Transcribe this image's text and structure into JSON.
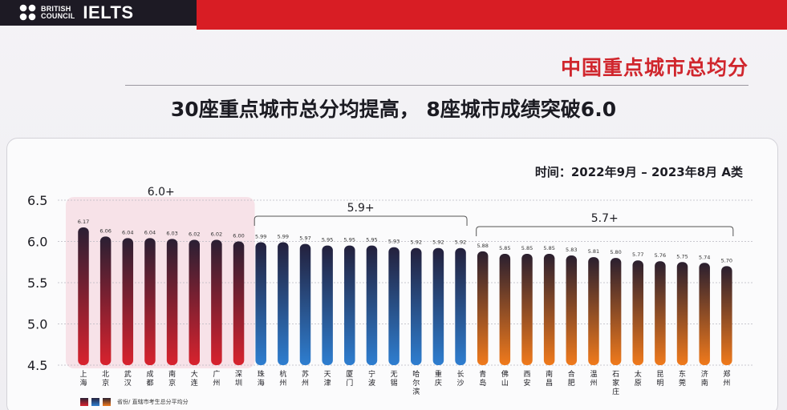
{
  "brand": {
    "org_line1": "BRITISH",
    "org_line2": "COUNCIL",
    "product": "IELTS"
  },
  "header": {
    "title": "中国重点城市总均分"
  },
  "subtitle": "30座重点城市总分均提高， 8座城市成绩突破6.0",
  "time_label": "时间：2022年9月 – 2023年8月 A类",
  "legend": {
    "text": "省份/ 直辖市考生总分平均分"
  },
  "colors": {
    "accent_red": "#d81d24",
    "group1_top": "#2a1f33",
    "group1_bottom": "#d8222e",
    "group2_top": "#23203c",
    "group2_bottom": "#2e7ed0",
    "group3_top": "#2a1f2f",
    "group3_bottom": "#f07a1c",
    "highlight_box": "#f6d9e1"
  },
  "chart_data": {
    "type": "bar",
    "categories": [
      "上海",
      "北京",
      "武汉",
      "成都",
      "南京",
      "大连",
      "广州",
      "深圳",
      "珠海",
      "杭州",
      "苏州",
      "天津",
      "厦门",
      "宁波",
      "无锡",
      "哈尔滨",
      "重庆",
      "长沙",
      "青岛",
      "佛山",
      "西安",
      "南昌",
      "合肥",
      "温州",
      "石家庄",
      "太原",
      "昆明",
      "东莞",
      "济南",
      "郑州"
    ],
    "values": [
      6.17,
      6.06,
      6.04,
      6.04,
      6.03,
      6.02,
      6.02,
      6.0,
      5.99,
      5.99,
      5.97,
      5.95,
      5.95,
      5.95,
      5.93,
      5.92,
      5.92,
      5.92,
      5.88,
      5.85,
      5.85,
      5.85,
      5.83,
      5.81,
      5.8,
      5.77,
      5.76,
      5.75,
      5.74,
      5.7
    ],
    "value_labels": [
      "6.17",
      "6.06",
      "6.04",
      "6.04",
      "6.03",
      "6.02",
      "6.02",
      "6.00",
      "5.99",
      "5.99",
      "5.97",
      "5.95",
      "5.95",
      "5.95",
      "5.93",
      "5.92",
      "5.92",
      "5.92",
      "5.88",
      "5.85",
      "5.85",
      "5.85",
      "5.83",
      "5.81",
      "5.80",
      "5.77",
      "5.76",
      "5.75",
      "5.74",
      "5.70"
    ],
    "yticks": [
      "6.5",
      "6.0",
      "5.5",
      "5.0",
      "4.5"
    ],
    "ylim": [
      4.5,
      6.5
    ],
    "grid": true,
    "groups": [
      {
        "label": "6.0+",
        "from": 0,
        "to": 7
      },
      {
        "label": "5.9+",
        "from": 8,
        "to": 17
      },
      {
        "label": "5.7+",
        "from": 18,
        "to": 29
      }
    ]
  }
}
